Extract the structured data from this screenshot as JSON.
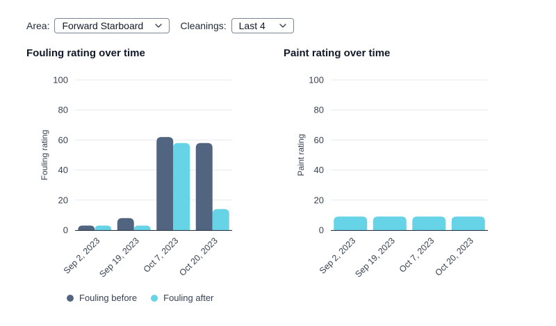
{
  "filters": {
    "area_label": "Area:",
    "area_value": "Forward Starboard",
    "cleanings_label": "Cleanings:",
    "cleanings_value": "Last 4"
  },
  "icons": {
    "dropdown": "chevron-down-icon"
  },
  "colors": {
    "before": "#526580",
    "after": "#67d3e7",
    "grid": "#e6e8ec",
    "axis": "#374151"
  },
  "chart_data": [
    {
      "type": "bar",
      "title": "Fouling rating over time",
      "ylabel": "Fouling rating",
      "xlabel": "",
      "ylim": [
        0,
        100
      ],
      "yticks": [
        0,
        20,
        40,
        60,
        80,
        100
      ],
      "categories": [
        "Sep 2, 2023",
        "Sep 19, 2023",
        "Oct 7, 2023",
        "Oct 20, 2023"
      ],
      "series": [
        {
          "name": "Fouling before",
          "values": [
            3,
            8,
            62,
            58
          ]
        },
        {
          "name": "Fouling after",
          "values": [
            3,
            3,
            58,
            14
          ]
        }
      ],
      "legend": "bottom-left",
      "grid": true
    },
    {
      "type": "bar",
      "title": "Paint rating over time",
      "ylabel": "Paint rating",
      "xlabel": "",
      "ylim": [
        0,
        100
      ],
      "yticks": [
        0,
        20,
        40,
        60,
        80,
        100
      ],
      "categories": [
        "Sep 2, 2023",
        "Sep 19, 2023",
        "Oct 7, 2023",
        "Oct 20, 2023"
      ],
      "series": [
        {
          "values": [
            9,
            9,
            9,
            9
          ]
        }
      ],
      "grid": true
    }
  ]
}
